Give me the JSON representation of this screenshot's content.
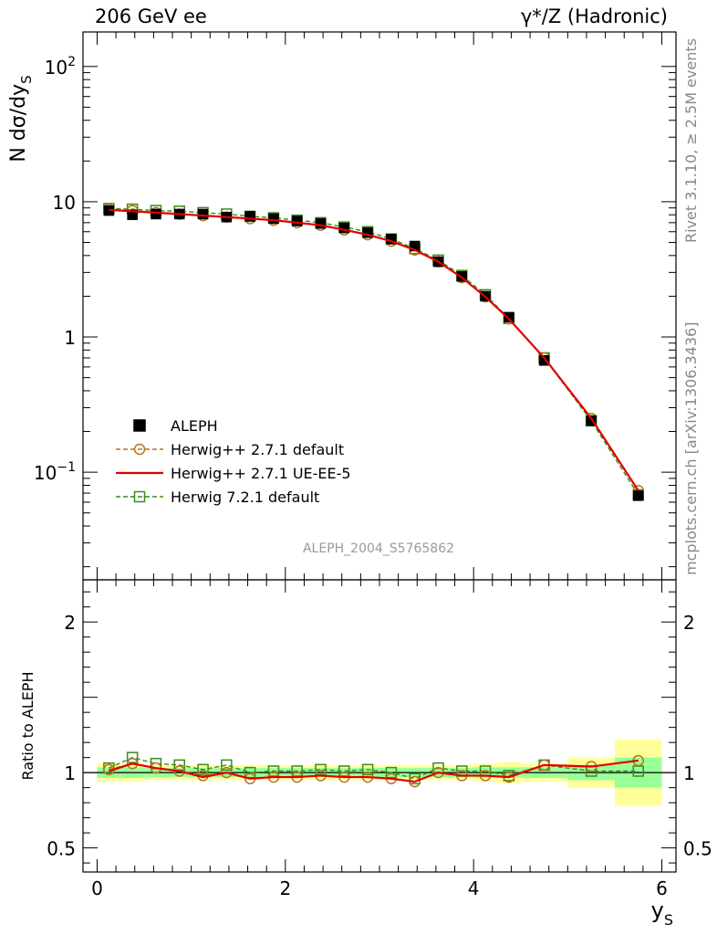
{
  "header": {
    "left": "206 GeV ee",
    "right": "γ*/Z (Hadronic)"
  },
  "side_labels": {
    "rivet": "Rivet 3.1.10, ≥ 2.5M events",
    "mcplots": "mcplots.cern.ch [arXiv:1306.3436]"
  },
  "analysis_id": "ALEPH_2004_S5765862",
  "colors": {
    "aleph": "#000000",
    "herwigpp_default": "#b8741a",
    "herwigpp_ueee5": "#e00000",
    "herwig72_default": "#3a8c1a",
    "band_yellow": "#ffff99",
    "band_green": "#99ff99"
  },
  "chart_data": [
    {
      "type": "scatter",
      "panel": "main",
      "ylabel": "N dσ/dy_S",
      "xlabel": "",
      "yscale": "log",
      "xlim": [
        -0.15,
        6.15
      ],
      "ylim": [
        0.016,
        180
      ],
      "ytick_labels": [
        "10^-1",
        "1",
        "10",
        "10^2"
      ],
      "ytick_values": [
        0.1,
        1,
        10,
        100
      ],
      "legend_position": "bottom-left",
      "x": [
        0.125,
        0.375,
        0.625,
        0.875,
        1.125,
        1.375,
        1.625,
        1.875,
        2.125,
        2.375,
        2.625,
        2.875,
        3.125,
        3.375,
        3.625,
        3.875,
        4.125,
        4.375,
        4.75,
        5.25,
        5.75
      ],
      "series": [
        {
          "name": "ALEPH",
          "marker": "filled-square",
          "values": [
            8.6,
            8.0,
            8.1,
            8.1,
            8.1,
            7.7,
            7.8,
            7.5,
            7.2,
            6.9,
            6.4,
            5.9,
            5.3,
            4.7,
            3.6,
            2.8,
            2.0,
            1.4,
            0.67,
            0.24,
            0.067
          ]
        },
        {
          "name": "Herwig++ 2.7.1 default",
          "marker": "open-circle",
          "line": "dashed",
          "values": [
            8.8,
            8.6,
            8.3,
            8.1,
            7.9,
            7.7,
            7.5,
            7.3,
            7.0,
            6.7,
            6.2,
            5.7,
            5.1,
            4.4,
            3.6,
            2.75,
            1.98,
            1.36,
            0.7,
            0.25,
            0.073
          ]
        },
        {
          "name": "Herwig++ 2.7.1 UE-EE-5",
          "marker": "none",
          "line": "solid",
          "values": [
            8.7,
            8.5,
            8.3,
            8.1,
            7.9,
            7.7,
            7.5,
            7.3,
            7.0,
            6.7,
            6.2,
            5.7,
            5.1,
            4.4,
            3.6,
            2.75,
            1.98,
            1.36,
            0.7,
            0.25,
            0.073
          ]
        },
        {
          "name": "Herwig 7.2.1 default",
          "marker": "open-square",
          "line": "dashed",
          "values": [
            8.9,
            8.8,
            8.6,
            8.5,
            8.3,
            8.1,
            7.8,
            7.6,
            7.3,
            7.0,
            6.5,
            6.0,
            5.3,
            4.5,
            3.7,
            2.85,
            2.05,
            1.37,
            0.7,
            0.24,
            0.068
          ]
        }
      ]
    },
    {
      "type": "line",
      "panel": "ratio",
      "ylabel": "Ratio to ALEPH",
      "xlabel": "y_S",
      "yscale": "linear",
      "xlim": [
        -0.15,
        6.15
      ],
      "ylim": [
        0.34,
        2.28
      ],
      "xtick_values": [
        0,
        2,
        4,
        6
      ],
      "xtick_labels": [
        "0",
        "2",
        "4",
        "6"
      ],
      "ytick_values": [
        0.5,
        1,
        2
      ],
      "ytick_labels": [
        "0.5",
        "1",
        "2"
      ],
      "x": [
        0.125,
        0.375,
        0.625,
        0.875,
        1.125,
        1.375,
        1.625,
        1.875,
        2.125,
        2.375,
        2.625,
        2.875,
        3.125,
        3.375,
        3.625,
        3.875,
        4.125,
        4.375,
        4.75,
        5.25,
        5.75
      ],
      "x_edges": [
        0,
        0.25,
        0.5,
        0.75,
        1.0,
        1.25,
        1.5,
        1.75,
        2.0,
        2.25,
        2.5,
        2.75,
        3.0,
        3.25,
        3.5,
        3.75,
        4.0,
        4.25,
        4.5,
        5.0,
        5.5,
        6.0
      ],
      "band_yellow": [
        0.06,
        0.06,
        0.05,
        0.05,
        0.05,
        0.05,
        0.05,
        0.05,
        0.05,
        0.05,
        0.05,
        0.05,
        0.05,
        0.05,
        0.05,
        0.05,
        0.06,
        0.07,
        0.06,
        0.1,
        0.22
      ],
      "band_green": [
        0.035,
        0.035,
        0.03,
        0.03,
        0.03,
        0.03,
        0.03,
        0.03,
        0.03,
        0.03,
        0.03,
        0.03,
        0.03,
        0.03,
        0.03,
        0.03,
        0.035,
        0.035,
        0.035,
        0.05,
        0.1
      ],
      "series": [
        {
          "name": "Herwig++ 2.7.1 default",
          "values": [
            1.02,
            1.06,
            1.03,
            1.01,
            0.98,
            1.0,
            0.96,
            0.97,
            0.97,
            0.98,
            0.97,
            0.97,
            0.96,
            0.94,
            1.0,
            0.98,
            0.98,
            0.97,
            1.05,
            1.04,
            1.08
          ]
        },
        {
          "name": "Herwig++ 2.7.1 UE-EE-5",
          "values": [
            1.01,
            1.06,
            1.03,
            1.01,
            0.97,
            1.0,
            0.96,
            0.97,
            0.97,
            0.98,
            0.97,
            0.97,
            0.96,
            0.94,
            1.0,
            0.98,
            0.98,
            0.97,
            1.05,
            1.04,
            1.08
          ]
        },
        {
          "name": "Herwig 7.2.1 default",
          "values": [
            1.03,
            1.1,
            1.06,
            1.05,
            1.02,
            1.05,
            1.0,
            1.01,
            1.01,
            1.02,
            1.01,
            1.02,
            1.0,
            0.96,
            1.03,
            1.01,
            1.01,
            0.98,
            1.05,
            1.01,
            1.01
          ]
        }
      ]
    }
  ]
}
